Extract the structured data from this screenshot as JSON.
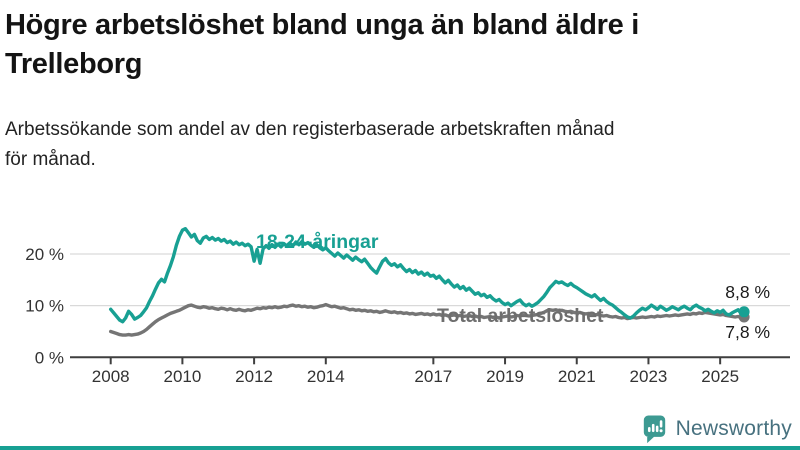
{
  "header": {
    "title_lines": [
      "Högre arbetslöshet bland unga än bland äldre i",
      "Trelleborg"
    ],
    "subtitle_lines": [
      "Arbetssökande som andel av den registerbaserade arbetskraften månad",
      "för månad."
    ]
  },
  "chart_data": {
    "type": "line",
    "title": "Högre arbetslöshet bland unga än bland äldre i Trelleborg",
    "subtitle": "Arbetssökande som andel av den registerbaserade arbetskraften månad för månad.",
    "x_start_year": 2008,
    "x_interval_months": 1,
    "x_tick_years": [
      2008,
      2010,
      2012,
      2014,
      2017,
      2019,
      2021,
      2023,
      2025
    ],
    "y_tick_values": [
      0,
      10,
      20
    ],
    "y_tick_labels": [
      "0 %",
      "10 %",
      "20 %"
    ],
    "ylim": [
      0,
      27
    ],
    "grid": "horizontal",
    "legend_position": "inline-labels",
    "series": [
      {
        "name": "18-24-åringar",
        "color": "#18a093",
        "end_label": "8,8 %",
        "values": [
          9.3,
          8.6,
          7.9,
          7.2,
          6.9,
          7.6,
          8.9,
          8.3,
          7.4,
          7.7,
          8.1,
          8.8,
          9.6,
          10.8,
          11.9,
          13.2,
          14.4,
          15.1,
          14.6,
          16.3,
          17.8,
          19.5,
          21.7,
          23.4,
          24.6,
          24.9,
          24.1,
          23.3,
          23.8,
          22.6,
          22.1,
          23.1,
          23.4,
          22.8,
          23.2,
          22.7,
          23.0,
          22.5,
          22.8,
          22.2,
          22.5,
          21.9,
          22.3,
          21.8,
          22.1,
          21.6,
          21.9,
          21.4,
          18.6,
          20.9,
          18.2,
          21.0,
          21.6,
          21.1,
          21.8,
          21.3,
          21.9,
          21.4,
          22.0,
          21.5,
          22.1,
          21.6,
          22.3,
          21.8,
          22.4,
          21.9,
          22.2,
          21.7,
          21.3,
          21.8,
          21.2,
          20.8,
          21.2,
          20.6,
          20.1,
          19.6,
          20.2,
          19.7,
          19.2,
          19.8,
          19.3,
          18.8,
          19.4,
          18.9,
          18.5,
          19.0,
          18.2,
          17.4,
          16.8,
          16.3,
          17.5,
          18.6,
          19.1,
          18.3,
          17.8,
          18.1,
          17.5,
          17.9,
          17.2,
          16.6,
          17.0,
          16.4,
          16.8,
          16.1,
          16.5,
          15.9,
          16.3,
          15.7,
          15.9,
          15.3,
          15.7,
          15.0,
          14.4,
          14.9,
          14.2,
          13.6,
          14.0,
          13.3,
          13.7,
          13.0,
          13.4,
          12.8,
          12.2,
          12.5,
          11.9,
          12.2,
          11.6,
          11.9,
          11.3,
          10.9,
          11.2,
          10.6,
          10.2,
          10.5,
          10.0,
          10.4,
          10.8,
          11.1,
          10.4,
          10.0,
          10.3,
          9.9,
          10.2,
          10.6,
          11.2,
          11.8,
          12.6,
          13.5,
          14.1,
          14.7,
          14.4,
          14.6,
          14.2,
          13.9,
          14.3,
          13.8,
          13.5,
          13.1,
          12.7,
          12.3,
          12.0,
          11.7,
          12.1,
          11.5,
          11.0,
          11.4,
          10.8,
          10.4,
          10.1,
          9.6,
          9.1,
          8.7,
          8.2,
          7.8,
          7.6,
          8.0,
          8.6,
          9.1,
          9.5,
          9.2,
          9.6,
          10.1,
          9.7,
          9.3,
          9.9,
          9.5,
          9.1,
          9.4,
          9.8,
          9.5,
          9.2,
          9.6,
          9.9,
          9.5,
          9.2,
          9.8,
          10.1,
          9.7,
          9.4,
          9.0,
          9.3,
          8.9,
          8.6,
          9.0,
          8.7,
          9.1,
          8.4,
          8.2,
          8.6,
          8.9,
          9.2,
          8.5,
          8.8
        ]
      },
      {
        "name": "Total arbetslöshet",
        "color": "#757575",
        "end_label": "7,8 %",
        "values": [
          5.0,
          4.8,
          4.6,
          4.4,
          4.3,
          4.3,
          4.4,
          4.3,
          4.4,
          4.5,
          4.7,
          5.0,
          5.4,
          5.9,
          6.4,
          6.9,
          7.3,
          7.6,
          7.9,
          8.2,
          8.5,
          8.7,
          8.9,
          9.1,
          9.4,
          9.7,
          10.0,
          10.1,
          9.9,
          9.7,
          9.6,
          9.8,
          9.7,
          9.5,
          9.6,
          9.4,
          9.3,
          9.5,
          9.4,
          9.2,
          9.4,
          9.2,
          9.1,
          9.3,
          9.1,
          9.0,
          9.2,
          9.1,
          9.3,
          9.5,
          9.4,
          9.6,
          9.5,
          9.7,
          9.6,
          9.8,
          9.6,
          9.7,
          9.9,
          9.8,
          10.0,
          10.1,
          9.9,
          10.0,
          9.8,
          9.9,
          9.7,
          9.8,
          9.6,
          9.7,
          9.9,
          10.0,
          10.2,
          10.0,
          9.8,
          9.9,
          9.7,
          9.5,
          9.6,
          9.4,
          9.2,
          9.3,
          9.1,
          9.2,
          9.0,
          9.1,
          8.9,
          9.0,
          8.8,
          8.9,
          8.7,
          8.8,
          9.0,
          8.8,
          8.7,
          8.8,
          8.6,
          8.7,
          8.5,
          8.6,
          8.4,
          8.5,
          8.3,
          8.4,
          8.5,
          8.3,
          8.4,
          8.2,
          8.4,
          8.2,
          8.3,
          8.1,
          8.2,
          8.0,
          8.1,
          8.2,
          8.0,
          8.1,
          7.9,
          8.0,
          8.1,
          7.9,
          8.0,
          7.8,
          7.9,
          7.7,
          7.8,
          7.9,
          7.7,
          7.8,
          7.6,
          7.8,
          7.9,
          8.0,
          7.8,
          7.9,
          8.1,
          8.0,
          8.2,
          8.1,
          8.0,
          8.1,
          8.2,
          8.3,
          8.5,
          8.7,
          9.0,
          9.2,
          9.1,
          9.2,
          9.0,
          9.1,
          8.9,
          8.8,
          8.9,
          8.7,
          8.6,
          8.7,
          8.5,
          8.4,
          8.5,
          8.3,
          8.2,
          8.3,
          8.1,
          8.0,
          8.1,
          7.9,
          7.8,
          7.9,
          7.7,
          7.6,
          7.7,
          7.5,
          7.6,
          7.7,
          7.6,
          7.7,
          7.8,
          7.7,
          7.8,
          7.9,
          7.8,
          8.0,
          7.9,
          8.0,
          8.1,
          8.0,
          8.1,
          8.2,
          8.1,
          8.2,
          8.3,
          8.4,
          8.3,
          8.5,
          8.4,
          8.6,
          8.5,
          8.7,
          8.6,
          8.5,
          8.4,
          8.3,
          8.2,
          8.3,
          8.1,
          8.0,
          7.9,
          7.8,
          7.9,
          7.7,
          7.8
        ]
      }
    ]
  },
  "colors": {
    "accent_teal": "#18a093",
    "line_gray": "#757575",
    "total_label_gray": "#6e6e6e",
    "gridline": "#d9d9d9",
    "axis": "#3f3f3f",
    "axis_text": "#333333",
    "value_label_text": "#1a1a1a",
    "brand_text": "#47717f",
    "brand_icon": "#3d9a92"
  },
  "footer": {
    "brand": "Newsworthy"
  }
}
